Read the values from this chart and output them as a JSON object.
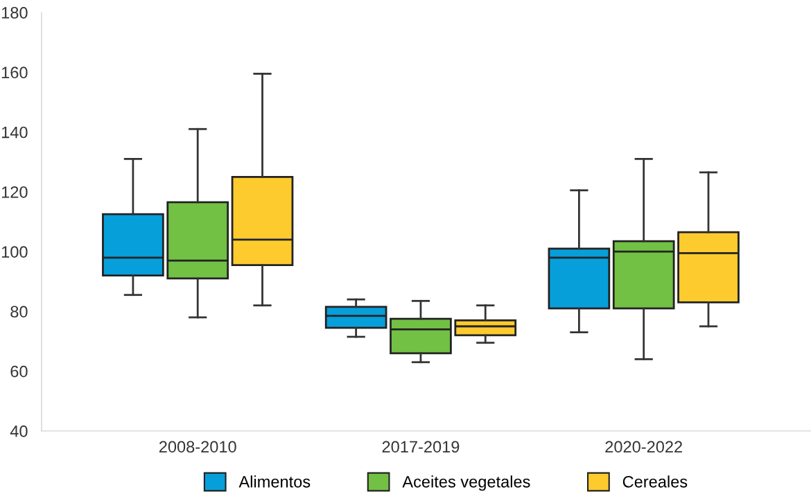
{
  "chart_data": {
    "type": "box",
    "categories": [
      "2008-2010",
      "2017-2019",
      "2020-2022"
    ],
    "series": [
      {
        "name": "Alimentos",
        "color": "#079fda",
        "boxes": [
          {
            "low": 85.5,
            "q1": 92,
            "median": 98,
            "q3": 112.5,
            "high": 131
          },
          {
            "low": 71.5,
            "q1": 74.5,
            "median": 78.5,
            "q3": 81.5,
            "high": 84
          },
          {
            "low": 73,
            "q1": 81,
            "median": 98,
            "q3": 101,
            "high": 120.5
          }
        ]
      },
      {
        "name": "Aceites vegetales",
        "color": "#72c044",
        "boxes": [
          {
            "low": 78,
            "q1": 91,
            "median": 97,
            "q3": 116.5,
            "high": 141
          },
          {
            "low": 63,
            "q1": 66,
            "median": 74,
            "q3": 77.5,
            "high": 83.5
          },
          {
            "low": 64,
            "q1": 81,
            "median": 100,
            "q3": 103.5,
            "high": 131
          }
        ]
      },
      {
        "name": "Cereales",
        "color": "#fdcb2e",
        "boxes": [
          {
            "low": 82,
            "q1": 95.5,
            "median": 104,
            "q3": 125,
            "high": 159.5
          },
          {
            "low": 69.5,
            "q1": 72,
            "median": 75,
            "q3": 77,
            "high": 82
          },
          {
            "low": 75,
            "q1": 83,
            "median": 99.5,
            "q3": 106.5,
            "high": 126.5
          }
        ]
      }
    ],
    "ylim": [
      40,
      180
    ],
    "yticks": [
      40,
      60,
      80,
      100,
      120,
      140,
      160,
      180
    ],
    "grid": false,
    "legend": "bottom"
  }
}
